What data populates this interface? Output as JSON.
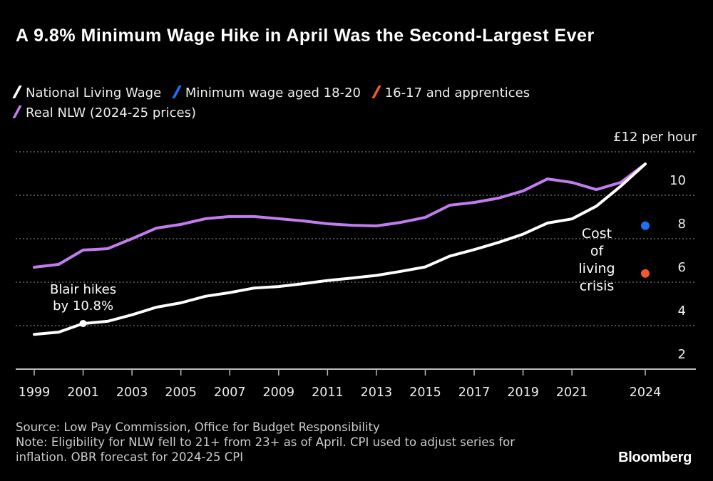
{
  "title": "A 9.8% Minimum Wage Hike in April Was the Second-Largest Ever",
  "legend": [
    {
      "label": "National Living Wage",
      "color": "#ffffff"
    },
    {
      "label": "Minimum wage aged 18-20",
      "color": "#1a73f5"
    },
    {
      "label": "16-17 and apprentices",
      "color": "#f25a2e"
    },
    {
      "label": "Real NLW (2024-25 prices)",
      "color": "#c27cf0"
    }
  ],
  "chart_data": {
    "type": "line",
    "ylabel": "£12 per hour",
    "ylim": [
      2,
      12
    ],
    "yticks": [
      2,
      4,
      6,
      8,
      10,
      12
    ],
    "ytick_labels": [
      "2",
      "4",
      "6",
      "8",
      "10",
      ""
    ],
    "xlim": [
      1999,
      2025.05
    ],
    "xticks": [
      "1999",
      "2001",
      "2003",
      "2005",
      "2007",
      "2009",
      "2011",
      "2013",
      "2015",
      "2017",
      "2019",
      "2021",
      "2024"
    ],
    "grid": true,
    "x": [
      1999,
      2000,
      2001,
      2002,
      2003,
      2004,
      2005,
      2006,
      2007,
      2008,
      2009,
      2010,
      2011,
      2012,
      2013,
      2014,
      2015,
      2016,
      2017,
      2018,
      2019,
      2020,
      2021,
      2022,
      2023,
      2024
    ],
    "series": [
      {
        "name": "Real NLW (2024-25 prices)",
        "color": "#c27cf0",
        "values": [
          6.69,
          6.82,
          7.48,
          7.54,
          8.0,
          8.49,
          8.66,
          8.92,
          9.02,
          9.02,
          8.92,
          8.82,
          8.69,
          8.62,
          8.59,
          8.75,
          8.98,
          9.54,
          9.67,
          9.87,
          10.2,
          10.75,
          10.59,
          10.26,
          10.59,
          11.44
        ]
      },
      {
        "name": "National Living Wage",
        "color": "#ffffff",
        "values": [
          3.6,
          3.7,
          4.1,
          4.2,
          4.5,
          4.85,
          5.05,
          5.35,
          5.52,
          5.73,
          5.8,
          5.93,
          6.08,
          6.19,
          6.31,
          6.5,
          6.7,
          7.2,
          7.5,
          7.83,
          8.21,
          8.72,
          8.91,
          9.5,
          10.42,
          11.44
        ]
      }
    ],
    "points": [
      {
        "name": "Minimum wage aged 18-20",
        "x": 2024,
        "y": 8.6,
        "color": "#1a73f5"
      },
      {
        "name": "16-17 and apprentices",
        "x": 2024,
        "y": 6.4,
        "color": "#f25a2e"
      }
    ],
    "annotations": [
      {
        "text": [
          "Blair hikes",
          "by 10.8%"
        ],
        "x": 2001,
        "y": 4.1
      },
      {
        "text": [
          "Cost",
          "of",
          "living",
          "crisis"
        ],
        "x": 2021.5
      }
    ]
  },
  "footer": {
    "source": "Source: Low Pay Commission, Office for Budget Responsibility",
    "note": "Note: Eligibility for NLW fell to 21+ from 23+ as of April. CPI used to adjust series for inflation. OBR forecast for 2024-25 CPI"
  },
  "logo": "Bloomberg"
}
